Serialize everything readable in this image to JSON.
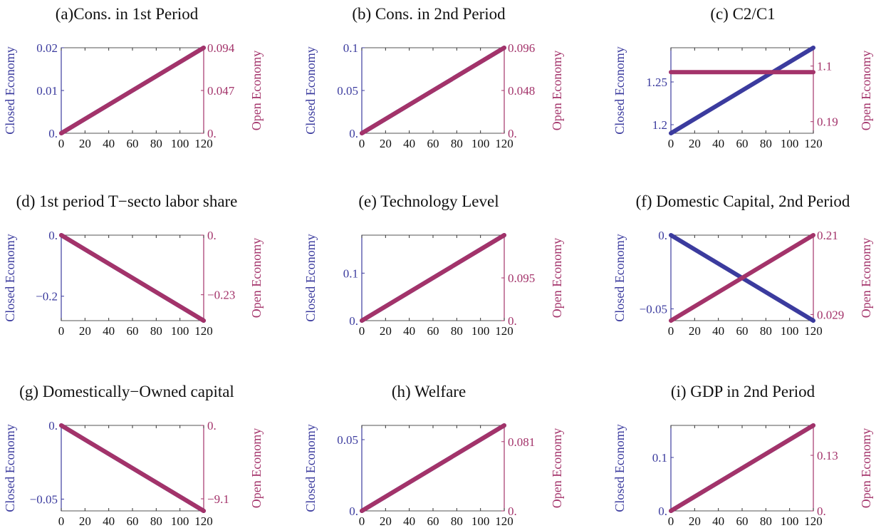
{
  "colors": {
    "closed": "#3b3b9e",
    "open": "#a3336a",
    "frame": "#555555"
  },
  "chart_data": [
    {
      "type": "line",
      "title": "(a)Cons. in 1st Period",
      "ylabel_left": "Closed Economy",
      "ylabel_right": "Open Economy",
      "xlim": [
        0,
        120
      ],
      "x_ticks": [
        "0",
        "20",
        "40",
        "60",
        "80",
        "100",
        "120"
      ],
      "left_ylim": [
        0,
        0.02
      ],
      "left_ticks": [
        {
          "v": 0,
          "t": "0."
        },
        {
          "v": 0.01,
          "t": "0.01"
        },
        {
          "v": 0.02,
          "t": "0.02"
        }
      ],
      "right_ylim": [
        0,
        0.094
      ],
      "right_ticks": [
        {
          "v": 0,
          "t": "0."
        },
        {
          "v": 0.047,
          "t": "0.047"
        },
        {
          "v": 0.094,
          "t": "0.094"
        }
      ],
      "series": [
        {
          "axis": "left",
          "x": [
            0,
            120
          ],
          "y": [
            0,
            0.02
          ]
        },
        {
          "axis": "right",
          "x": [
            0,
            120
          ],
          "y": [
            0,
            0.094
          ]
        }
      ]
    },
    {
      "type": "line",
      "title": "(b) Cons. in 2nd Period",
      "ylabel_left": "Closed Economy",
      "ylabel_right": "Open Economy",
      "xlim": [
        0,
        120
      ],
      "x_ticks": [
        "0",
        "20",
        "40",
        "60",
        "80",
        "100",
        "120"
      ],
      "left_ylim": [
        0,
        0.1
      ],
      "left_ticks": [
        {
          "v": 0,
          "t": "0."
        },
        {
          "v": 0.05,
          "t": "0.05"
        },
        {
          "v": 0.1,
          "t": "0.1"
        }
      ],
      "right_ylim": [
        0,
        0.096
      ],
      "right_ticks": [
        {
          "v": 0,
          "t": "0."
        },
        {
          "v": 0.048,
          "t": "0.048"
        },
        {
          "v": 0.096,
          "t": "0.096"
        }
      ],
      "series": [
        {
          "axis": "left",
          "x": [
            0,
            120
          ],
          "y": [
            0,
            0.1
          ]
        },
        {
          "axis": "right",
          "x": [
            0,
            120
          ],
          "y": [
            0,
            0.096
          ]
        }
      ]
    },
    {
      "type": "line",
      "title": "(c) C2/C1",
      "ylabel_left": "Closed Economy",
      "ylabel_right": "Open Economy",
      "xlim": [
        0,
        120
      ],
      "x_ticks": [
        "0",
        "20",
        "40",
        "60",
        "80",
        "100",
        "120"
      ],
      "left_ylim": [
        1.19,
        1.29
      ],
      "left_ticks": [
        {
          "v": 1.2,
          "t": "1.2"
        },
        {
          "v": 1.25,
          "t": "1.25"
        }
      ],
      "right_ylim": [
        0,
        1.4
      ],
      "right_ticks": [
        {
          "v": 0.19,
          "t": "0.19"
        },
        {
          "v": 1.1,
          "t": "1.1"
        }
      ],
      "series": [
        {
          "axis": "left",
          "x": [
            0,
            120
          ],
          "y": [
            1.19,
            1.29
          ]
        },
        {
          "axis": "right",
          "x": [
            0,
            120
          ],
          "y": [
            1.0,
            1.0
          ]
        }
      ]
    },
    {
      "type": "line",
      "title": "(d) 1st period T−secto labor share",
      "ylabel_left": "Closed Economy",
      "ylabel_right": "Open Economy",
      "xlim": [
        0,
        120
      ],
      "x_ticks": [
        "0",
        "20",
        "40",
        "60",
        "80",
        "100",
        "120"
      ],
      "left_ylim": [
        -0.28,
        0
      ],
      "left_ticks": [
        {
          "v": 0,
          "t": "0."
        },
        {
          "v": -0.2,
          "t": "−0.2"
        }
      ],
      "right_ylim": [
        -0.33,
        0
      ],
      "right_ticks": [
        {
          "v": 0,
          "t": "0."
        },
        {
          "v": -0.23,
          "t": "−0.23"
        }
      ],
      "series": [
        {
          "axis": "left",
          "x": [
            0,
            120
          ],
          "y": [
            0,
            -0.28
          ]
        },
        {
          "axis": "right",
          "x": [
            0,
            120
          ],
          "y": [
            0,
            -0.33
          ]
        }
      ]
    },
    {
      "type": "line",
      "title": "(e) Technology Level",
      "ylabel_left": "Closed Economy",
      "ylabel_right": "Open Economy",
      "xlim": [
        0,
        120
      ],
      "x_ticks": [
        "0",
        "20",
        "40",
        "60",
        "80",
        "100",
        "120"
      ],
      "left_ylim": [
        0,
        0.18
      ],
      "left_ticks": [
        {
          "v": 0,
          "t": "0."
        },
        {
          "v": 0.1,
          "t": "0.1"
        }
      ],
      "right_ylim": [
        0,
        0.19
      ],
      "right_ticks": [
        {
          "v": 0,
          "t": "0."
        },
        {
          "v": 0.095,
          "t": "0.095"
        }
      ],
      "series": [
        {
          "axis": "left",
          "x": [
            0,
            120
          ],
          "y": [
            0,
            0.18
          ]
        },
        {
          "axis": "right",
          "x": [
            0,
            120
          ],
          "y": [
            0,
            0.19
          ]
        }
      ]
    },
    {
      "type": "line",
      "title": "(f) Domestic Capital, 2nd Period",
      "ylabel_left": "Closed Economy",
      "ylabel_right": "Open Economy",
      "xlim": [
        0,
        120
      ],
      "x_ticks": [
        "0",
        "20",
        "40",
        "60",
        "80",
        "100",
        "120"
      ],
      "left_ylim": [
        -0.058,
        0
      ],
      "left_ticks": [
        {
          "v": 0,
          "t": "0."
        },
        {
          "v": -0.05,
          "t": "−0.05"
        }
      ],
      "right_ylim": [
        0.015,
        0.21
      ],
      "right_ticks": [
        {
          "v": 0.21,
          "t": "0.21"
        },
        {
          "v": 0.029,
          "t": "0.029"
        }
      ],
      "series": [
        {
          "axis": "left",
          "x": [
            0,
            120
          ],
          "y": [
            0,
            -0.058
          ]
        },
        {
          "axis": "right",
          "x": [
            0,
            120
          ],
          "y": [
            0.015,
            0.21
          ]
        }
      ]
    },
    {
      "type": "line",
      "title": "(g) Domestically−Owned capital",
      "ylabel_left": "Closed Economy",
      "ylabel_right": "Open Economy",
      "xlim": [
        0,
        120
      ],
      "x_ticks": [
        "0",
        "20",
        "40",
        "60",
        "80",
        "100",
        "120"
      ],
      "left_ylim": [
        -0.058,
        0
      ],
      "left_ticks": [
        {
          "v": 0,
          "t": "0."
        },
        {
          "v": -0.05,
          "t": "−0.05"
        }
      ],
      "right_ylim": [
        -10.6,
        0
      ],
      "right_ticks": [
        {
          "v": 0,
          "t": "0."
        },
        {
          "v": -9.1,
          "t": "−9.1"
        }
      ],
      "series": [
        {
          "axis": "left",
          "x": [
            0,
            120
          ],
          "y": [
            0,
            -0.058
          ]
        },
        {
          "axis": "right",
          "x": [
            0,
            120
          ],
          "y": [
            0,
            -10.6
          ]
        }
      ]
    },
    {
      "type": "line",
      "title": "(h) Welfare",
      "ylabel_left": "Closed Economy",
      "ylabel_right": "Open Economy",
      "xlim": [
        0,
        120
      ],
      "x_ticks": [
        "0",
        "20",
        "40",
        "60",
        "80",
        "100",
        "120"
      ],
      "left_ylim": [
        0,
        0.06
      ],
      "left_ticks": [
        {
          "v": 0,
          "t": "0."
        },
        {
          "v": 0.05,
          "t": "0.05"
        }
      ],
      "right_ylim": [
        0,
        0.1
      ],
      "right_ticks": [
        {
          "v": 0,
          "t": "0."
        },
        {
          "v": 0.081,
          "t": "0.081"
        }
      ],
      "series": [
        {
          "axis": "left",
          "x": [
            0,
            120
          ],
          "y": [
            0,
            0.06
          ]
        },
        {
          "axis": "right",
          "x": [
            0,
            120
          ],
          "y": [
            0,
            0.1
          ]
        }
      ]
    },
    {
      "type": "line",
      "title": "(i) GDP in 2nd Period",
      "ylabel_left": "Closed Economy",
      "ylabel_right": "Open Economy",
      "xlim": [
        0,
        120
      ],
      "x_ticks": [
        "0",
        "20",
        "40",
        "60",
        "80",
        "100",
        "120"
      ],
      "left_ylim": [
        0,
        0.16
      ],
      "left_ticks": [
        {
          "v": 0,
          "t": "0."
        },
        {
          "v": 0.1,
          "t": "0.1"
        }
      ],
      "right_ylim": [
        0,
        0.2
      ],
      "right_ticks": [
        {
          "v": 0,
          "t": "0."
        },
        {
          "v": 0.13,
          "t": "0.13"
        }
      ],
      "series": [
        {
          "axis": "left",
          "x": [
            0,
            120
          ],
          "y": [
            0,
            0.16
          ]
        },
        {
          "axis": "right",
          "x": [
            0,
            120
          ],
          "y": [
            0,
            0.2
          ]
        }
      ]
    }
  ]
}
